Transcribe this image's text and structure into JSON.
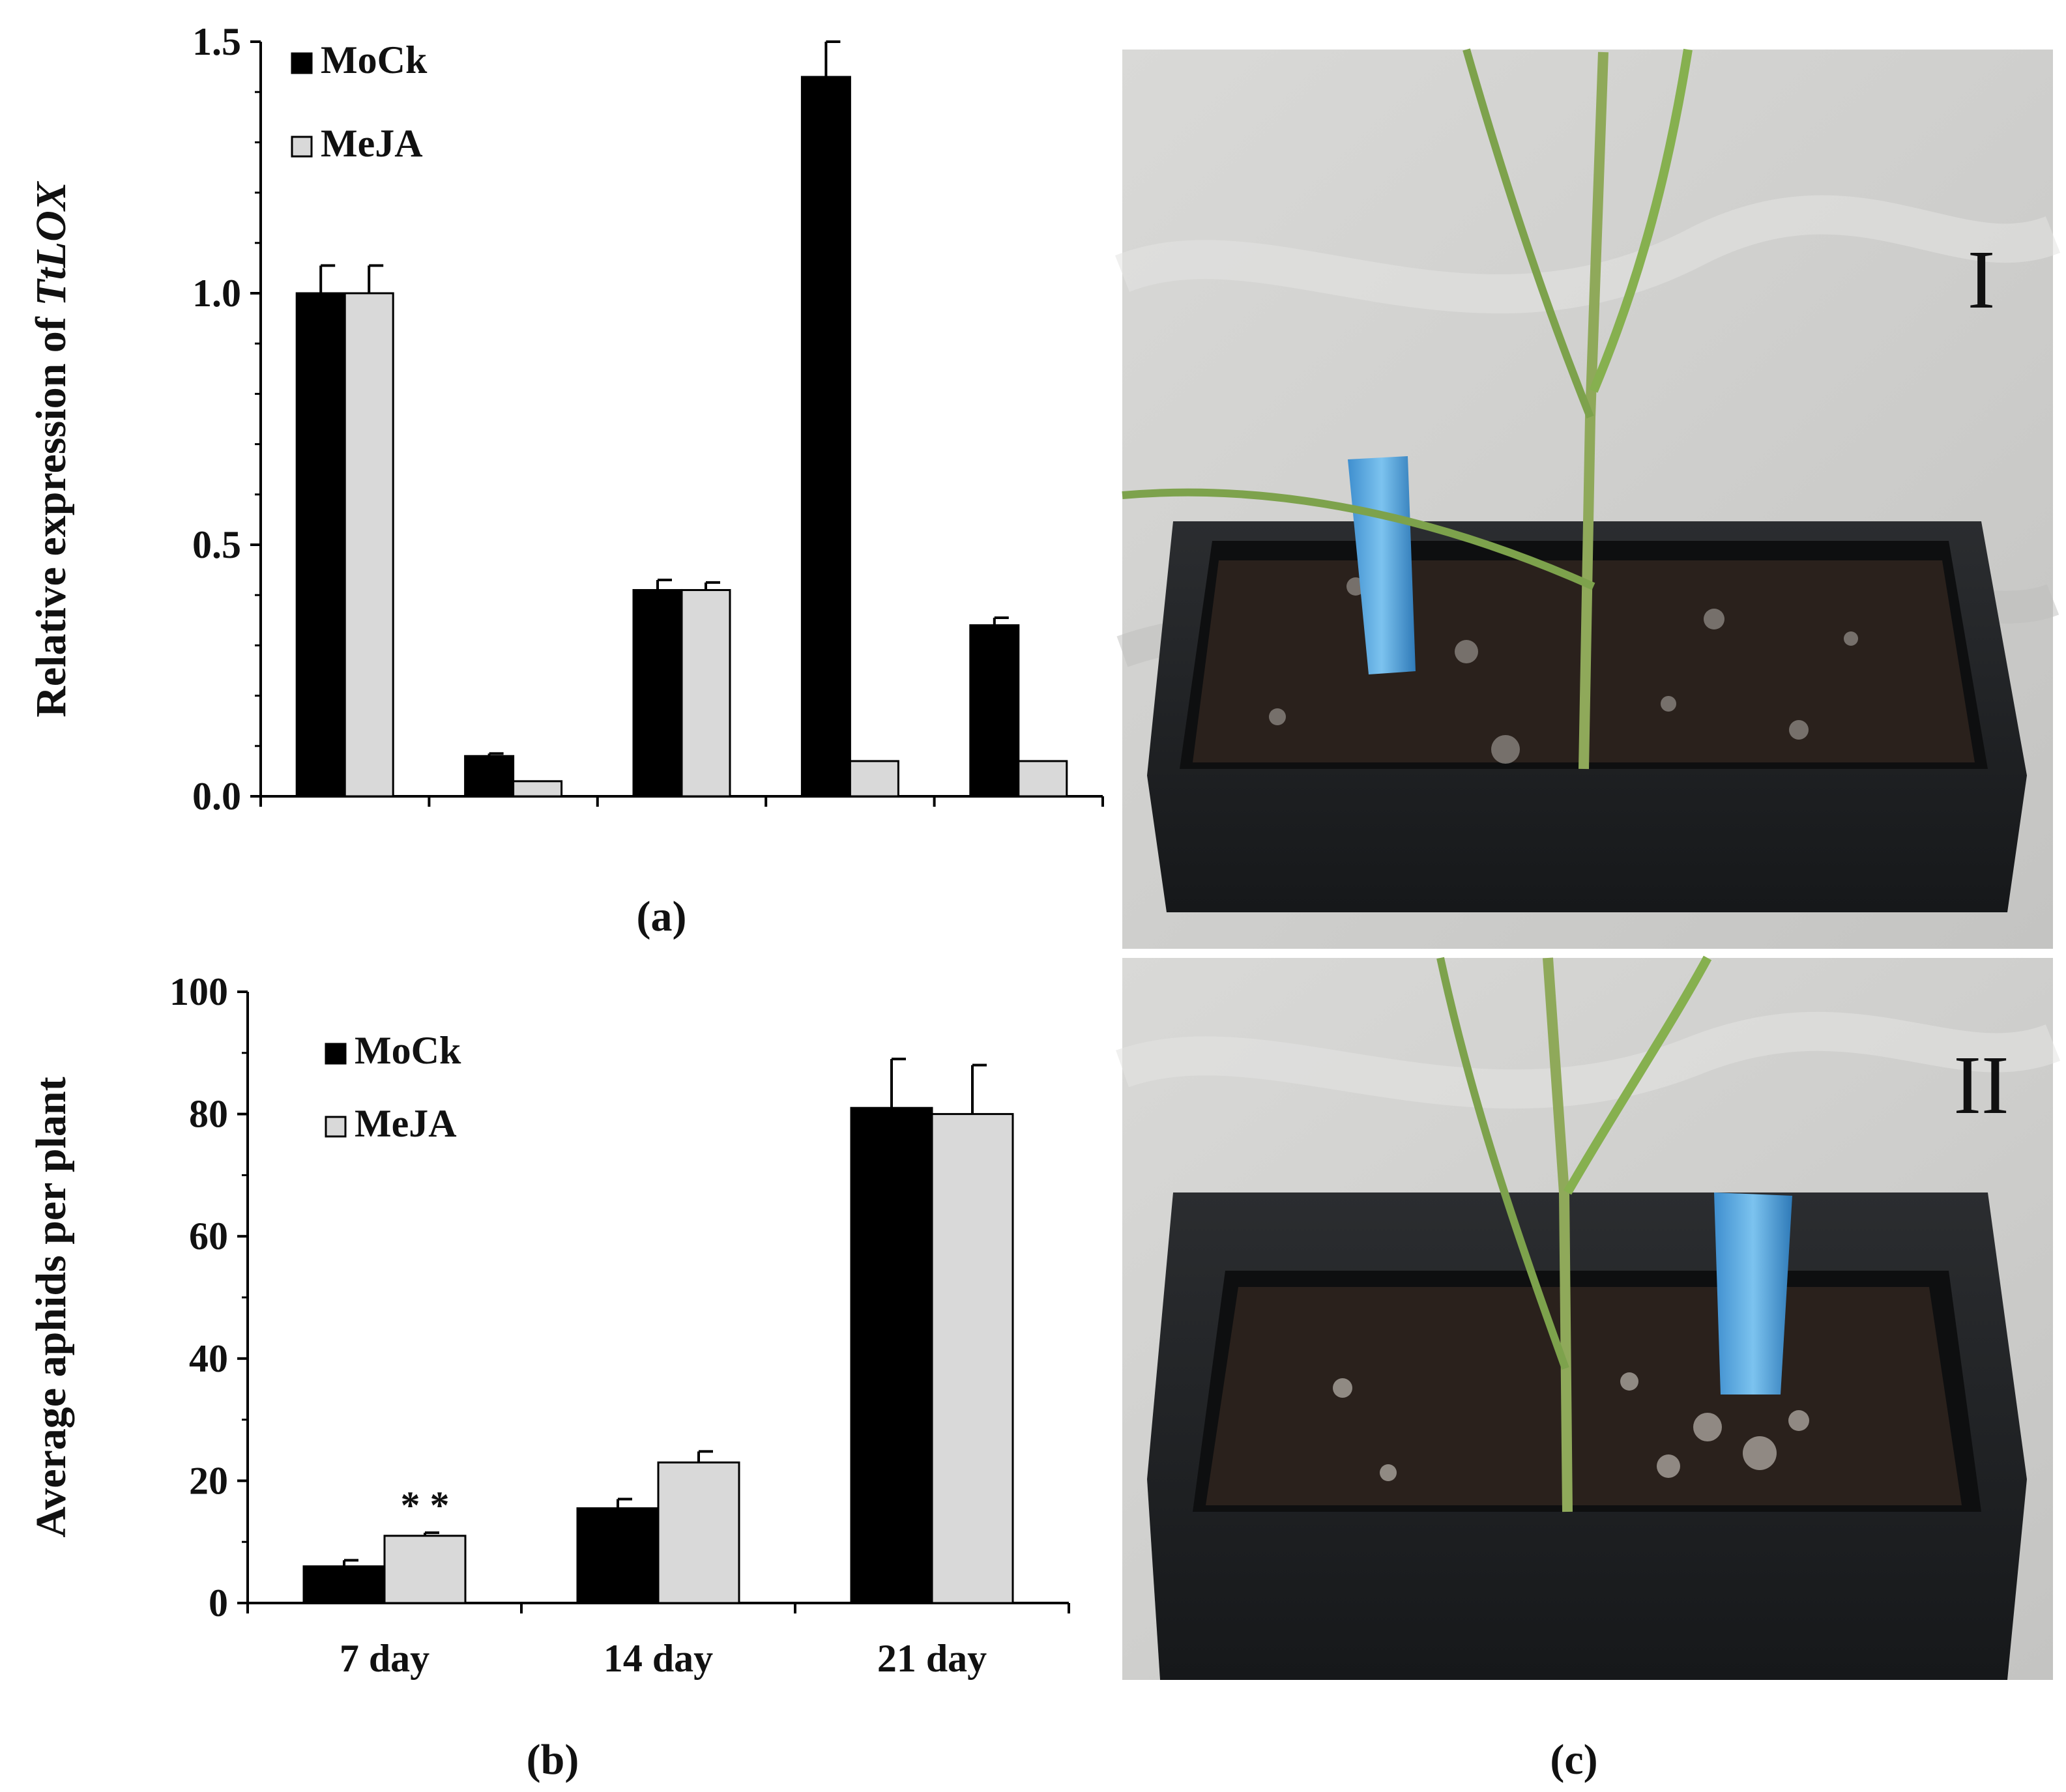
{
  "chart_data": [
    {
      "type": "bar",
      "panel_label": "(a)",
      "ylabel_prefix": "Relative expression of ",
      "ylabel_gene": "TtLOX",
      "ylim": [
        0,
        1.5
      ],
      "yticks": [
        "0.0",
        "0.5",
        "1.0",
        "1.5"
      ],
      "ytick_values": [
        0,
        0.5,
        1.0,
        1.5
      ],
      "categories": [
        "",
        "",
        "",
        "",
        ""
      ],
      "grid": false,
      "legend_position": "top-left",
      "series": [
        {
          "name": "MoCk",
          "color": "#000000",
          "values": [
            1.0,
            0.08,
            0.41,
            1.43,
            0.34
          ],
          "errors": [
            0.055,
            0.005,
            0.02,
            0.07,
            0.015
          ]
        },
        {
          "name": "MeJA",
          "color": "#d9d9d9",
          "values": [
            1.0,
            0.03,
            0.41,
            0.07,
            0.07
          ],
          "errors": [
            0.055,
            0.0,
            0.015,
            0.0,
            0.0
          ]
        }
      ]
    },
    {
      "type": "bar",
      "panel_label": "(b)",
      "ylabel": "Average aphids per plant",
      "ylim": [
        0,
        100
      ],
      "yticks": [
        "0",
        "20",
        "40",
        "60",
        "80",
        "100"
      ],
      "ytick_values": [
        0,
        20,
        40,
        60,
        80,
        100
      ],
      "categories": [
        "7 day",
        "14 day",
        "21 day"
      ],
      "grid": false,
      "legend_position": "top-left",
      "series": [
        {
          "name": "MoCk",
          "color": "#000000",
          "values": [
            6,
            15.5,
            81
          ],
          "errors": [
            1,
            1.5,
            8
          ]
        },
        {
          "name": "MeJA",
          "color": "#d9d9d9",
          "values": [
            11,
            23,
            80
          ],
          "errors": [
            0.5,
            1.8,
            8
          ]
        }
      ],
      "annotations": [
        {
          "text": "* *",
          "category_index": 0,
          "series_index": 1
        }
      ]
    }
  ],
  "photo_panel": {
    "panel_label": "(c)",
    "top_label": "I",
    "bottom_label": "II"
  }
}
